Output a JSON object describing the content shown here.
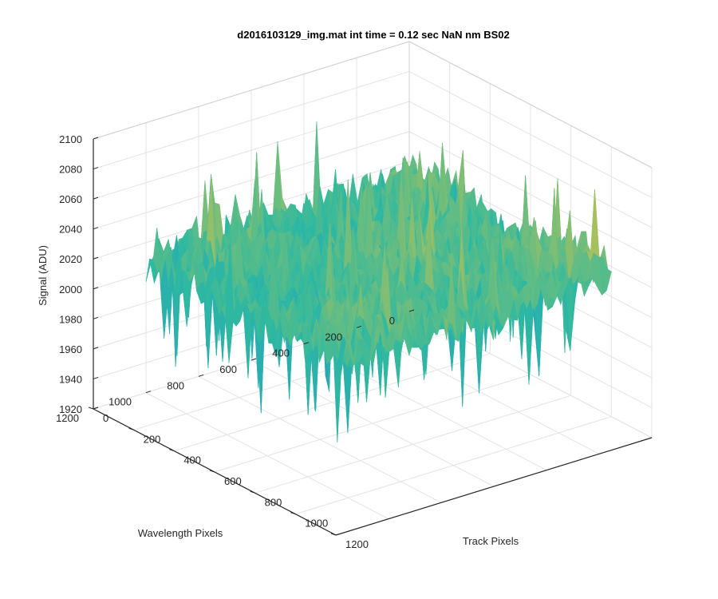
{
  "chart_data": {
    "type": "surface3d",
    "title": "d2016103129_img.mat int time = 0.12 sec  NaN nm BS02",
    "xlabel": "Track Pixels",
    "ylabel": "Wavelength Pixels",
    "zlabel": "Signal (ADU)",
    "xlim": [
      0,
      1200
    ],
    "ylim": [
      0,
      1200
    ],
    "zlim": [
      1920,
      2100
    ],
    "xticks": [
      "0",
      "200",
      "400",
      "600",
      "800",
      "1000",
      "1200"
    ],
    "yticks": [
      "0",
      "200",
      "400",
      "600",
      "800",
      "1000",
      "1200"
    ],
    "zticks": [
      "1920",
      "1940",
      "1960",
      "1980",
      "2000",
      "2020",
      "2040",
      "2060",
      "2080",
      "2100"
    ],
    "grid": true,
    "colormap": "parula",
    "colors": {
      "low": "#1f9ad0",
      "mid": "#2fb9a0",
      "high": "#f5c535"
    },
    "surface_summary": {
      "x_extent": [
        0,
        1000
      ],
      "y_extent": [
        0,
        1000
      ],
      "mean_level": 2010,
      "noise_amplitude": 30,
      "peak_level": 2080,
      "min_level": 1935
    }
  }
}
